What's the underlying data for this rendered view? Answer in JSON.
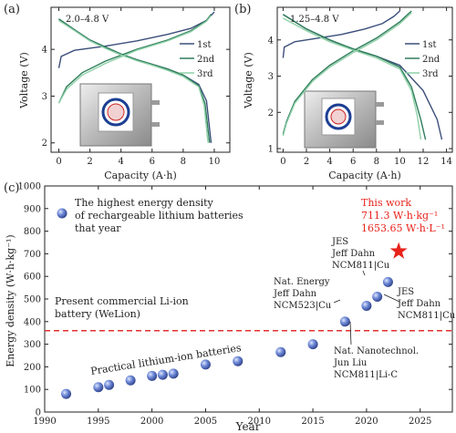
{
  "panels": {
    "a": {
      "label": "(a)",
      "window": "2.0–4.8 V"
    },
    "b": {
      "label": "(b)",
      "window": "1.25–4.8 V"
    },
    "c": {
      "label": "(c)"
    }
  },
  "colors": {
    "cycle1": "#3b4f7a",
    "cycle2": "#2f7d5b",
    "cycle3": "#8fd0a8",
    "marker": "#4f6fc9",
    "star": "#e8221a",
    "dashed": "#e03030",
    "red_text": "#e8221a"
  },
  "chart_data": [
    {
      "type": "line",
      "panel": "a",
      "xlabel": "Capacity (A·h)",
      "ylabel": "Voltage (V)",
      "xlim": [
        -0.5,
        11
      ],
      "ylim": [
        1.8,
        4.9
      ],
      "xticks": [
        0,
        2,
        4,
        6,
        8,
        10
      ],
      "yticks": [
        2,
        3,
        4
      ],
      "legend": "right",
      "series": [
        {
          "name": "1st",
          "charge": [
            [
              0,
              3.6
            ],
            [
              0.15,
              3.85
            ],
            [
              1,
              3.98
            ],
            [
              3,
              4.07
            ],
            [
              5,
              4.18
            ],
            [
              7,
              4.32
            ],
            [
              8.5,
              4.45
            ],
            [
              9.5,
              4.62
            ],
            [
              10,
              4.8
            ]
          ],
          "discharge": [
            [
              0,
              4.65
            ],
            [
              1,
              4.42
            ],
            [
              2,
              4.2
            ],
            [
              3,
              4.05
            ],
            [
              4,
              3.9
            ],
            [
              5,
              3.78
            ],
            [
              6,
              3.68
            ],
            [
              7,
              3.58
            ],
            [
              8,
              3.45
            ],
            [
              9,
              3.25
            ],
            [
              9.5,
              2.9
            ],
            [
              9.8,
              2.0
            ]
          ]
        },
        {
          "name": "2nd",
          "charge": [
            [
              0,
              2.85
            ],
            [
              0.5,
              3.2
            ],
            [
              1.5,
              3.5
            ],
            [
              3,
              3.75
            ],
            [
              5,
              4.0
            ],
            [
              7,
              4.2
            ],
            [
              8.5,
              4.4
            ],
            [
              9.5,
              4.62
            ],
            [
              9.8,
              4.75
            ]
          ],
          "discharge": [
            [
              0,
              4.65
            ],
            [
              1,
              4.42
            ],
            [
              2,
              4.2
            ],
            [
              3,
              4.05
            ],
            [
              4,
              3.9
            ],
            [
              5,
              3.78
            ],
            [
              6,
              3.68
            ],
            [
              7,
              3.58
            ],
            [
              8,
              3.45
            ],
            [
              9,
              3.22
            ],
            [
              9.4,
              2.85
            ],
            [
              9.7,
              2.0
            ]
          ]
        },
        {
          "name": "3rd",
          "charge": [
            [
              0,
              2.85
            ],
            [
              0.5,
              3.15
            ],
            [
              1.5,
              3.45
            ],
            [
              3,
              3.7
            ],
            [
              5,
              3.98
            ],
            [
              7,
              4.18
            ],
            [
              8.5,
              4.38
            ],
            [
              9.5,
              4.6
            ],
            [
              9.8,
              4.72
            ]
          ],
          "discharge": [
            [
              0,
              4.62
            ],
            [
              1,
              4.4
            ],
            [
              2,
              4.18
            ],
            [
              3,
              4.02
            ],
            [
              4,
              3.88
            ],
            [
              5,
              3.76
            ],
            [
              6,
              3.66
            ],
            [
              7,
              3.55
            ],
            [
              8,
              3.42
            ],
            [
              9,
              3.2
            ],
            [
              9.35,
              2.8
            ],
            [
              9.6,
              2.0
            ]
          ]
        }
      ]
    },
    {
      "type": "line",
      "panel": "b",
      "xlabel": "Capacity (A·h)",
      "ylabel": "Voltage (V)",
      "xlim": [
        -0.5,
        14.5
      ],
      "ylim": [
        0.9,
        4.9
      ],
      "xticks": [
        0,
        2,
        4,
        6,
        8,
        10,
        12,
        14
      ],
      "yticks": [
        1,
        2,
        3,
        4
      ],
      "legend": "right",
      "series": [
        {
          "name": "1st",
          "charge": [
            [
              0,
              3.5
            ],
            [
              0.1,
              3.8
            ],
            [
              1,
              3.95
            ],
            [
              3,
              4.05
            ],
            [
              5,
              4.15
            ],
            [
              7,
              4.3
            ],
            [
              8.5,
              4.45
            ],
            [
              9.5,
              4.65
            ],
            [
              10,
              4.8
            ]
          ],
          "discharge": [
            [
              0,
              4.7
            ],
            [
              2,
              4.3
            ],
            [
              4,
              4.0
            ],
            [
              6,
              3.75
            ],
            [
              8,
              3.55
            ],
            [
              10,
              3.3
            ],
            [
              12,
              2.6
            ],
            [
              13.2,
              1.8
            ],
            [
              13.6,
              1.25
            ]
          ]
        },
        {
          "name": "2nd",
          "charge": [
            [
              0,
              1.4
            ],
            [
              0.3,
              1.75
            ],
            [
              1,
              2.3
            ],
            [
              2.5,
              2.9
            ],
            [
              4,
              3.3
            ],
            [
              6,
              3.7
            ],
            [
              8,
              4.05
            ],
            [
              10,
              4.5
            ],
            [
              11,
              4.8
            ]
          ],
          "discharge": [
            [
              0,
              4.7
            ],
            [
              2,
              4.3
            ],
            [
              4,
              4.0
            ],
            [
              6,
              3.75
            ],
            [
              8,
              3.55
            ],
            [
              10,
              3.25
            ],
            [
              11,
              2.7
            ],
            [
              11.8,
              1.8
            ],
            [
              12.2,
              1.25
            ]
          ]
        },
        {
          "name": "3rd",
          "charge": [
            [
              0,
              1.35
            ],
            [
              0.3,
              1.7
            ],
            [
              1,
              2.25
            ],
            [
              2.5,
              2.85
            ],
            [
              4,
              3.25
            ],
            [
              6,
              3.65
            ],
            [
              8,
              4.0
            ],
            [
              10,
              4.45
            ],
            [
              11,
              4.75
            ]
          ],
          "discharge": [
            [
              0,
              4.6
            ],
            [
              2,
              4.25
            ],
            [
              4,
              3.95
            ],
            [
              6,
              3.72
            ],
            [
              8,
              3.5
            ],
            [
              10,
              3.2
            ],
            [
              11,
              2.6
            ],
            [
              11.5,
              1.9
            ],
            [
              11.8,
              1.25
            ]
          ]
        }
      ]
    },
    {
      "type": "scatter",
      "panel": "c",
      "xlabel": "Year",
      "ylabel": "Energy density (W·h·kg⁻¹)",
      "xlim": [
        1990,
        2028
      ],
      "ylim": [
        0,
        1000
      ],
      "xticks": [
        1990,
        1995,
        2000,
        2005,
        2010,
        2015,
        2020,
        2025
      ],
      "yticks": [
        0,
        100,
        200,
        300,
        400,
        500,
        600,
        700,
        800,
        900,
        1000
      ],
      "points": [
        {
          "x": 1992,
          "y": 80
        },
        {
          "x": 1995,
          "y": 110
        },
        {
          "x": 1996,
          "y": 120
        },
        {
          "x": 1998,
          "y": 140
        },
        {
          "x": 2000,
          "y": 160
        },
        {
          "x": 2001,
          "y": 165
        },
        {
          "x": 2002,
          "y": 170
        },
        {
          "x": 2005,
          "y": 210
        },
        {
          "x": 2008,
          "y": 225
        },
        {
          "x": 2012,
          "y": 265
        },
        {
          "x": 2015,
          "y": 300
        },
        {
          "x": 2018,
          "y": 400
        },
        {
          "x": 2020,
          "y": 470
        },
        {
          "x": 2021,
          "y": 510
        },
        {
          "x": 2022,
          "y": 575
        }
      ],
      "star": {
        "x": 2023,
        "y": 711.3
      },
      "reference_line": {
        "y": 360,
        "label_line1": "Present commercial Li-ion",
        "label_line2": "battery (WeLion)"
      },
      "annotations": {
        "legend_line1": "The highest energy density",
        "legend_line2": "of rechargeable lithium batteries",
        "legend_line3": "that year",
        "this_work_1": "This work",
        "this_work_2": "711.3 W·h·kg⁻¹",
        "this_work_3": "1653.65 W·h·L⁻¹",
        "jes1_1": "JES",
        "jes1_2": "Jeff Dahn",
        "jes1_3": "NCM811|Cu",
        "ne_1": "Nat. Energy",
        "ne_2": "Jeff Dahn",
        "ne_3": "NCM523|Cu",
        "jes2_1": "JES",
        "jes2_2": "Jeff Dahn",
        "jes2_3": "NCM811|Cu",
        "nn_1": "Nat. Nanotechnol.",
        "nn_2": "Jun Liu",
        "nn_3": "NCM811|Li-C",
        "practical": "Practical lithium-ion batteries"
      }
    }
  ]
}
